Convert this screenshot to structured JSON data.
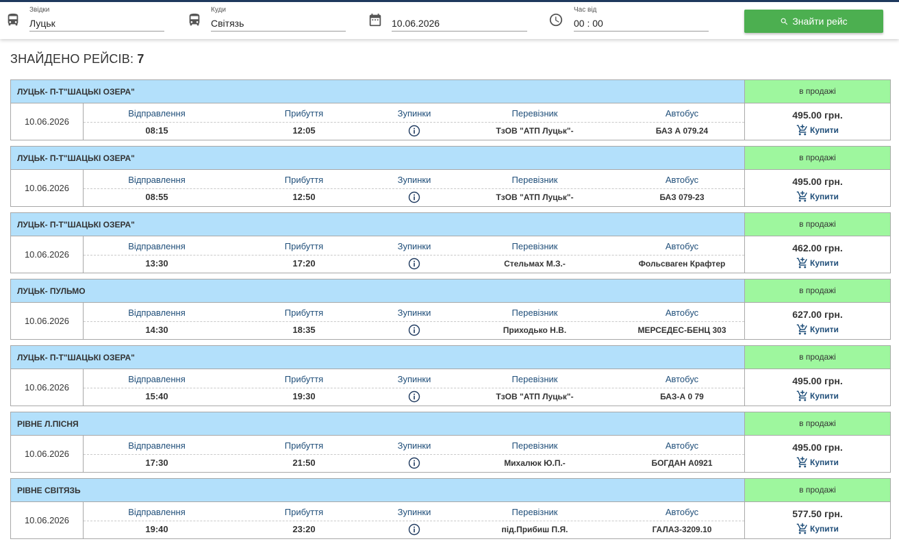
{
  "search": {
    "from_label": "Звідки",
    "from_value": "Луцьк",
    "to_label": "Куди",
    "to_value": "Світязь",
    "date_value": "10.06.2026",
    "time_label": "Час від",
    "time_value": "00 : 00",
    "button_label": "Знайти рейс"
  },
  "results": {
    "found_label": "ЗНАЙДЕНО РЕЙСІВ:",
    "found_count": "7"
  },
  "columns": {
    "departure": "Відправлення",
    "arrival": "Прибуття",
    "stops": "Зупинки",
    "carrier": "Перевізник",
    "bus": "Автобус"
  },
  "buy_label": "Купити",
  "icons": {
    "from": "bus-icon",
    "to": "bus-icon",
    "date": "calendar-icon",
    "time": "clock-icon",
    "search": "search-icon",
    "stops": "info-icon",
    "buy": "cart-icon"
  },
  "colors": {
    "header_bg": "#b3e0fb",
    "status_bg": "#9ef79e",
    "button_bg": "#4caf50",
    "label_color": "#1f4e79"
  },
  "trips": [
    {
      "route": "ЛУЦЬК- П-Т\"ШАЦЬКІ ОЗЕРА\"",
      "status": "в продажі",
      "date": "10.06.2026",
      "departure": "08:15",
      "arrival": "12:05",
      "carrier": "ТзОВ \"АТП Луцьк\"-",
      "bus": "БАЗ А 079.24",
      "price": "495.00 грн."
    },
    {
      "route": "ЛУЦЬК- П-Т\"ШАЦЬКІ ОЗЕРА\"",
      "status": "в продажі",
      "date": "10.06.2026",
      "departure": "08:55",
      "arrival": "12:50",
      "carrier": "ТзОВ \"АТП Луцьк\"-",
      "bus": "БАЗ 079-23",
      "price": "495.00 грн."
    },
    {
      "route": "ЛУЦЬК- П-Т\"ШАЦЬКІ ОЗЕРА\"",
      "status": "в продажі",
      "date": "10.06.2026",
      "departure": "13:30",
      "arrival": "17:20",
      "carrier": "Стельмах М.З.-",
      "bus": "Фольсваген Крафтер",
      "price": "462.00 грн."
    },
    {
      "route": "ЛУЦЬК- ПУЛЬМО",
      "status": "в продажі",
      "date": "10.06.2026",
      "departure": "14:30",
      "arrival": "18:35",
      "carrier": "Приходько Н.В.",
      "bus": "МЕРСЕДЕС-БЕНЦ 303",
      "price": "627.00 грн."
    },
    {
      "route": "ЛУЦЬК- П-Т\"ШАЦЬКІ ОЗЕРА\"",
      "status": "в продажі",
      "date": "10.06.2026",
      "departure": "15:40",
      "arrival": "19:30",
      "carrier": "ТзОВ \"АТП Луцьк\"-",
      "bus": "БАЗ-А 0 79",
      "price": "495.00 грн."
    },
    {
      "route": "РІВНЕ Л.ПІСНЯ",
      "status": "в продажі",
      "date": "10.06.2026",
      "departure": "17:30",
      "arrival": "21:50",
      "carrier": "Михалюк Ю.П.-",
      "bus": "БОГДАН А0921",
      "price": "495.00 грн."
    },
    {
      "route": "РІВНЕ СВІТЯЗЬ",
      "status": "в продажі",
      "date": "10.06.2026",
      "departure": "19:40",
      "arrival": "23:20",
      "carrier": "під.Прибиш П.Я.",
      "bus": "ГАЛАЗ-3209.10",
      "price": "577.50 грн."
    }
  ]
}
